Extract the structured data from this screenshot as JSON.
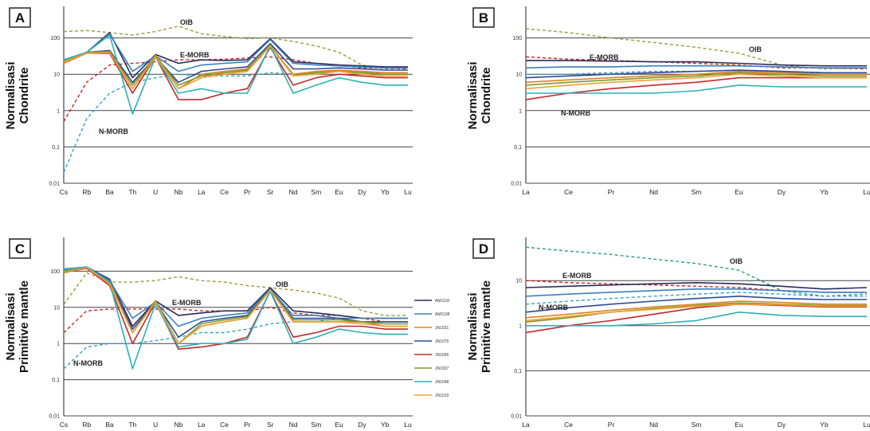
{
  "chart_data": [
    {
      "panel": "A",
      "type": "line",
      "ylabel": [
        "Normalisasi",
        "Chondrite"
      ],
      "yscale": "log",
      "ylim": [
        0.01,
        1000
      ],
      "ytick_labels": [
        "0,01",
        "0,1",
        "1",
        "10",
        "100"
      ],
      "categories": [
        "Cs",
        "Rb",
        "Ba",
        "Th",
        "U",
        "Nb",
        "La",
        "Ce",
        "Pr",
        "Sr",
        "Nd",
        "Sm",
        "Eu",
        "Dy",
        "Yb",
        "Lu"
      ],
      "annotations": [
        "OIB",
        "E-MORB",
        "N-MORB"
      ],
      "reference_series": [
        {
          "name": "OIB",
          "color": "#9a9a3a",
          "values": [
            150,
            160,
            140,
            120,
            150,
            210,
            130,
            110,
            95,
            100,
            80,
            60,
            40,
            18,
            14,
            15
          ]
        },
        {
          "name": "E-MORB",
          "color": "#d02020",
          "values": [
            0.5,
            6,
            18,
            20,
            22,
            25,
            25,
            26,
            28,
            30,
            25,
            20,
            18,
            15,
            15,
            14
          ]
        },
        {
          "name": "N-MORB",
          "color": "#30a0c8",
          "values": [
            0.02,
            0.6,
            3,
            6,
            8,
            10,
            9,
            9,
            9,
            11,
            10,
            11,
            12,
            11,
            11,
            11
          ]
        }
      ],
      "series": [
        {
          "color": "#2b2b5a",
          "values": [
            25,
            40,
            140,
            8,
            35,
            20,
            25,
            24,
            25,
            95,
            22,
            20,
            18,
            17,
            16,
            16
          ]
        },
        {
          "color": "#3a7fc0",
          "values": [
            25,
            40,
            130,
            12,
            32,
            12,
            18,
            20,
            22,
            90,
            20,
            18,
            17,
            16,
            15,
            15
          ]
        },
        {
          "color": "#e08020",
          "values": [
            20,
            38,
            40,
            4,
            34,
            4,
            10,
            12,
            14,
            60,
            10,
            12,
            13,
            12,
            11,
            11
          ]
        },
        {
          "color": "#2e4a9a",
          "values": [
            22,
            40,
            45,
            6,
            30,
            6,
            12,
            14,
            16,
            70,
            14,
            14,
            15,
            14,
            13,
            13
          ]
        },
        {
          "color": "#c42828",
          "values": [
            22,
            38,
            38,
            3,
            30,
            2,
            2,
            3,
            4,
            55,
            5,
            8,
            10,
            9,
            8,
            8
          ]
        },
        {
          "color": "#7a9a28",
          "values": [
            24,
            40,
            42,
            5,
            32,
            5,
            9,
            11,
            13,
            65,
            9,
            11,
            12,
            11,
            10,
            10
          ]
        },
        {
          "color": "#2ab0b8",
          "values": [
            25,
            40,
            120,
            0.8,
            30,
            3,
            4,
            3,
            3,
            60,
            3,
            5,
            8,
            6,
            5,
            5
          ]
        },
        {
          "color": "#f0a030",
          "values": [
            22,
            38,
            40,
            4,
            30,
            4,
            8,
            10,
            12,
            60,
            9,
            10,
            12,
            10,
            9,
            9
          ]
        }
      ]
    },
    {
      "panel": "B",
      "type": "line",
      "ylabel": [
        "Normalisasi",
        "Chondrite"
      ],
      "yscale": "log",
      "ylim": [
        0.01,
        1000
      ],
      "ytick_labels": [
        "0,01",
        "0,1",
        "1",
        "10",
        "100"
      ],
      "categories": [
        "La",
        "Ce",
        "Pr",
        "Nd",
        "Sm",
        "Eu",
        "Dy",
        "Yb",
        "Lu"
      ],
      "annotations": [
        "OIB",
        "E-MORB",
        "N-MORB"
      ],
      "reference_series": [
        {
          "name": "OIB",
          "color": "#9a9a3a",
          "values": [
            180,
            140,
            100,
            75,
            55,
            38,
            18,
            14,
            15
          ]
        },
        {
          "name": "E-MORB",
          "color": "#d02020",
          "values": [
            30,
            26,
            24,
            22,
            20,
            18,
            15,
            15,
            14
          ]
        },
        {
          "name": "N-MORB",
          "color": "#30a0c8",
          "values": [
            10,
            10,
            11,
            12,
            12,
            13,
            11,
            11,
            11
          ]
        }
      ],
      "series": [
        {
          "color": "#2b2b5a",
          "values": [
            24,
            24,
            23,
            22,
            22,
            20,
            18,
            17,
            17
          ]
        },
        {
          "color": "#3a7fc0",
          "values": [
            15,
            16,
            16,
            17,
            17,
            17,
            16,
            15,
            15
          ]
        },
        {
          "color": "#e08020",
          "values": [
            6,
            7,
            8,
            9,
            10,
            12,
            11,
            10,
            10
          ]
        },
        {
          "color": "#2e4a9a",
          "values": [
            8,
            9,
            10,
            11,
            12,
            13,
            12,
            11,
            11
          ]
        },
        {
          "color": "#c42828",
          "values": [
            2,
            3,
            4,
            5,
            6,
            8,
            8,
            8,
            8
          ]
        },
        {
          "color": "#7a9a28",
          "values": [
            5,
            6,
            7,
            8,
            9,
            11,
            10,
            9,
            9
          ]
        },
        {
          "color": "#2ab0b8",
          "values": [
            3,
            3,
            3,
            3,
            3.5,
            5,
            4.5,
            4.5,
            4.5
          ]
        },
        {
          "color": "#f0a030",
          "values": [
            4,
            5,
            6,
            7,
            8,
            10,
            9,
            8,
            8
          ]
        }
      ]
    },
    {
      "panel": "C",
      "type": "line",
      "ylabel": [
        "Normalisasi",
        "Primitive mantle"
      ],
      "yscale": "log",
      "ylim": [
        0.01,
        1000
      ],
      "ytick_labels": [
        "0,01",
        "0,1",
        "1",
        "10",
        "100"
      ],
      "categories": [
        "Cs",
        "Rb",
        "Ba",
        "Th",
        "U",
        "Nb",
        "La",
        "Ce",
        "Pr",
        "Sr",
        "Nd",
        "Sm",
        "Eu",
        "Dy",
        "Yb",
        "Lu"
      ],
      "annotations": [
        "OIB",
        "E-MORB",
        "N-MORB"
      ],
      "legend": [
        "AM1118",
        "AM1108",
        "JN1031",
        "JN1076",
        "JN1005",
        "JN1007",
        "JN1048",
        "JN1019"
      ],
      "reference_series": [
        {
          "name": "OIB",
          "color": "#9a9a3a",
          "values": [
            12,
            90,
            50,
            50,
            55,
            70,
            55,
            50,
            40,
            35,
            30,
            25,
            18,
            8,
            6,
            6
          ]
        },
        {
          "name": "E-MORB",
          "color": "#d02020",
          "values": [
            2,
            8,
            9,
            9,
            9,
            9,
            8,
            8,
            8,
            10,
            7,
            6,
            6,
            5,
            4,
            4
          ]
        },
        {
          "name": "N-MORB",
          "color": "#30a0c8",
          "values": [
            0.2,
            0.8,
            1,
            1,
            1.2,
            1.5,
            2,
            2,
            2.5,
            3.5,
            4,
            4,
            5,
            4,
            4,
            4
          ]
        }
      ],
      "series": [
        {
          "color": "#2b2b5a",
          "values": [
            110,
            130,
            60,
            3,
            15,
            6,
            7,
            8,
            8,
            35,
            8,
            7,
            6,
            5,
            5,
            5
          ]
        },
        {
          "color": "#3a7fc0",
          "values": [
            115,
            130,
            55,
            5,
            14,
            3,
            5,
            6,
            7,
            32,
            6,
            6,
            5,
            5,
            5,
            5
          ]
        },
        {
          "color": "#e08020",
          "values": [
            90,
            125,
            45,
            2,
            15,
            1,
            3,
            4,
            5,
            30,
            4,
            4,
            4,
            4,
            3,
            3
          ]
        },
        {
          "color": "#2e4a9a",
          "values": [
            100,
            128,
            48,
            2.5,
            14,
            1.5,
            4,
            5,
            6,
            30,
            5,
            5,
            5,
            4,
            4,
            4
          ]
        },
        {
          "color": "#c42828",
          "values": [
            95,
            120,
            40,
            1,
            14,
            0.7,
            0.8,
            1,
            1.5,
            28,
            1.5,
            2,
            3,
            3,
            2.5,
            2.5
          ]
        },
        {
          "color": "#7a9a28",
          "values": [
            105,
            128,
            50,
            2,
            15,
            1,
            3.5,
            4.5,
            5.5,
            30,
            4.5,
            4.5,
            4.5,
            4,
            3.5,
            3.5
          ]
        },
        {
          "color": "#2ab0b8",
          "values": [
            110,
            130,
            50,
            0.2,
            13,
            0.8,
            1,
            1,
            1.3,
            28,
            1,
            1.5,
            2.5,
            2,
            1.8,
            1.8
          ]
        },
        {
          "color": "#f0a030",
          "values": [
            95,
            125,
            45,
            2,
            14,
            1,
            3,
            4,
            5,
            30,
            4,
            4,
            4,
            3.5,
            3,
            3
          ]
        }
      ]
    },
    {
      "panel": "D",
      "type": "line",
      "ylabel": [
        "Normalisasi",
        "Primitive mantle"
      ],
      "yscale": "log",
      "ylim": [
        0.01,
        100
      ],
      "ytick_labels": [
        "0,01",
        "0,1",
        "1",
        "10"
      ],
      "categories": [
        "La",
        "Ce",
        "Pr",
        "Nd",
        "Sm",
        "Eu",
        "Dy",
        "Yb",
        "Lu"
      ],
      "annotations": [
        "OIB",
        "E-MORB",
        "N-MORB"
      ],
      "reference_series": [
        {
          "name": "OIB",
          "color": "#2a9a8a",
          "values": [
            55,
            45,
            38,
            30,
            24,
            17,
            6,
            4.5,
            5
          ]
        },
        {
          "name": "E-MORB",
          "color": "#d02020",
          "values": [
            10,
            9,
            8.5,
            8,
            7.5,
            7,
            6,
            5.5,
            5.5
          ]
        },
        {
          "name": "N-MORB",
          "color": "#30a0c8",
          "values": [
            3,
            3.5,
            4,
            4.5,
            5,
            5.5,
            5,
            4.5,
            4.5
          ]
        }
      ],
      "series": [
        {
          "color": "#2b2b5a",
          "values": [
            7,
            7.5,
            8,
            8.5,
            9,
            8.5,
            7.5,
            6.5,
            7
          ]
        },
        {
          "color": "#3a7fc0",
          "values": [
            4.5,
            5,
            5.5,
            6,
            6.5,
            6.5,
            6,
            5.5,
            5.5
          ]
        },
        {
          "color": "#e08020",
          "values": [
            1.5,
            1.8,
            2.2,
            2.6,
            3,
            3.5,
            3.3,
            3,
            3
          ]
        },
        {
          "color": "#2e4a9a",
          "values": [
            2,
            2.5,
            3,
            3.5,
            4,
            4.5,
            4,
            3.8,
            3.8
          ]
        },
        {
          "color": "#c42828",
          "values": [
            0.7,
            1,
            1.3,
            1.8,
            2.5,
            3,
            2.8,
            2.6,
            2.6
          ]
        },
        {
          "color": "#7a9a28",
          "values": [
            1.2,
            1.5,
            2,
            2.4,
            2.8,
            3.2,
            3,
            2.8,
            2.8
          ]
        },
        {
          "color": "#2ab0b8",
          "values": [
            1,
            1,
            1,
            1.1,
            1.3,
            2,
            1.7,
            1.6,
            1.6
          ]
        },
        {
          "color": "#f0a030",
          "values": [
            1.3,
            1.6,
            2,
            2.3,
            2.7,
            3,
            2.9,
            2.7,
            2.7
          ]
        }
      ]
    }
  ]
}
